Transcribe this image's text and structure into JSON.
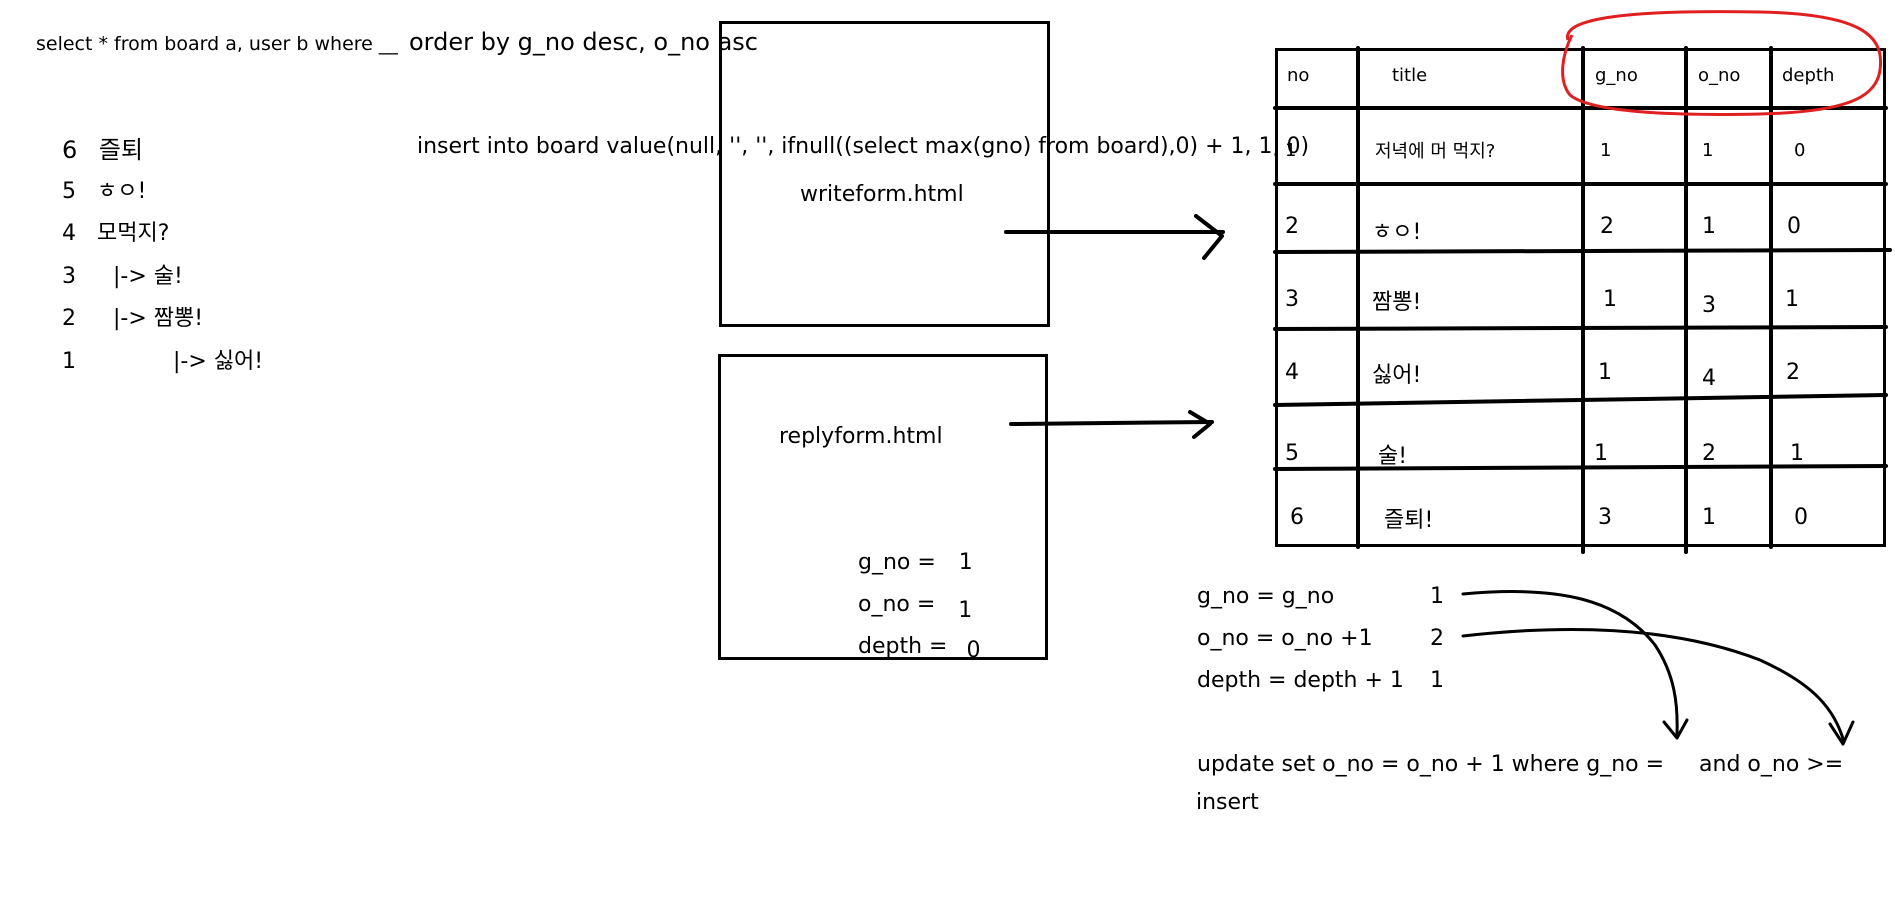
{
  "query": {
    "prefix": "select * from board a, user b where __",
    "suffix": "order by g_no desc, o_no asc"
  },
  "insert_query": "insert into board value(null, '', '', ifnull((select max(gno) from board),0) + 1, 1, 0)",
  "thread_list": [
    {
      "no": "6",
      "text": "즐퇴"
    },
    {
      "no": "5",
      "text": "ㅎㅇ!"
    },
    {
      "no": "4",
      "text": "모먹지?"
    },
    {
      "no": "3",
      "text": "|-> 술!"
    },
    {
      "no": "2",
      "text": "|-> 짬뽕!"
    },
    {
      "no": "1",
      "text": "|-> 싫어!"
    }
  ],
  "writeform": {
    "label": "writeform.html"
  },
  "replyform": {
    "label": "replyform.html",
    "fields": [
      {
        "name": "g_no =",
        "value": "1"
      },
      {
        "name": "o_no =",
        "value": "1"
      },
      {
        "name": "depth =",
        "value": "0"
      }
    ]
  },
  "table": {
    "headers": [
      "no",
      "title",
      "g_no",
      "o_no",
      "depth"
    ],
    "rows": [
      [
        "1",
        "저녁에 머 먹지?",
        "1",
        "1",
        "0"
      ],
      [
        "2",
        "ㅎㅇ!",
        "2",
        "1",
        "0"
      ],
      [
        "3",
        "짬뽕!",
        "1",
        "3",
        "1"
      ],
      [
        "4",
        "싫어!",
        "1",
        "4",
        "2"
      ],
      [
        "5",
        "술!",
        "1",
        "2",
        "1"
      ],
      [
        "6",
        "즐퇴!",
        "3",
        "1",
        "0"
      ]
    ],
    "highlight_color": "#e02020"
  },
  "formulas": [
    {
      "expr": "g_no = g_no",
      "value": "1"
    },
    {
      "expr": "o_no = o_no +1",
      "value": "2"
    },
    {
      "expr": "depth = depth + 1",
      "value": "1"
    }
  ],
  "update_query": {
    "part1": "update set o_no = o_no + 1 where g_no =",
    "part2": "and o_no >="
  },
  "insert_label": "insert"
}
